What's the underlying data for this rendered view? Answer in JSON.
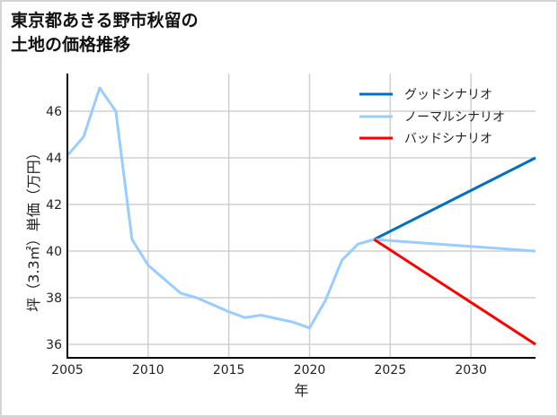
{
  "title": "東京都あきる野市秋留の\n土地の価格推移",
  "chart_data": {
    "type": "line",
    "title": "東京都あきる野市秋留の土地の価格推移",
    "xlabel": "年",
    "ylabel": "坪（3.3㎡）単価（万円）",
    "xlim": [
      2005,
      2034
    ],
    "ylim": [
      35.5,
      47.6
    ],
    "xticks": [
      2005,
      2010,
      2015,
      2020,
      2025,
      2030
    ],
    "yticks": [
      36,
      38,
      40,
      42,
      44,
      46
    ],
    "grid": true,
    "legend_position": "upper right",
    "series": [
      {
        "name": "グッドシナリオ",
        "color": "#0070c0",
        "x": [
          2024,
          2034
        ],
        "y": [
          40.5,
          44.0
        ]
      },
      {
        "name": "ノーマルシナリオ",
        "color": "#99ccff",
        "x": [
          2005,
          2006,
          2007,
          2008,
          2009,
          2010,
          2011,
          2012,
          2013,
          2014,
          2015,
          2016,
          2017,
          2018,
          2019,
          2020,
          2021,
          2022,
          2023,
          2024,
          2034
        ],
        "y": [
          44.1,
          44.9,
          47.0,
          46.0,
          40.5,
          39.4,
          38.8,
          38.2,
          38.0,
          37.7,
          37.4,
          37.15,
          37.25,
          37.1,
          36.95,
          36.7,
          37.9,
          39.6,
          40.3,
          40.5,
          40.0
        ]
      },
      {
        "name": "バッドシナリオ",
        "color": "#ff0000",
        "x": [
          2024,
          2034
        ],
        "y": [
          40.5,
          36.0
        ]
      }
    ]
  }
}
